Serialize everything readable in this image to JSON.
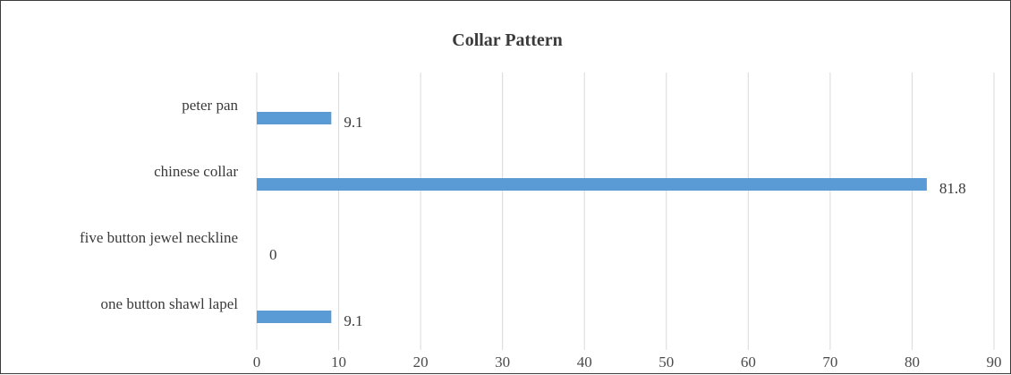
{
  "chart_data": {
    "type": "bar",
    "orientation": "horizontal",
    "title": "Collar Pattern",
    "categories": [
      "peter pan",
      "chinese collar",
      "five button jewel neckline",
      "one button shawl lapel"
    ],
    "values": [
      9.1,
      81.8,
      0,
      9.1
    ],
    "data_labels": [
      "9.1",
      "81.8",
      "0",
      "9.1"
    ],
    "xlim": [
      0,
      90
    ],
    "x_ticks": [
      0,
      10,
      20,
      30,
      40,
      50,
      60,
      70,
      80,
      90
    ],
    "x_tick_labels": [
      "0",
      "10",
      "20",
      "30",
      "40",
      "50",
      "60",
      "70",
      "80",
      "90"
    ],
    "grid": true,
    "legend": "none",
    "bar_color": "#5b9bd5",
    "gridline_color": "#d9d9d9"
  }
}
